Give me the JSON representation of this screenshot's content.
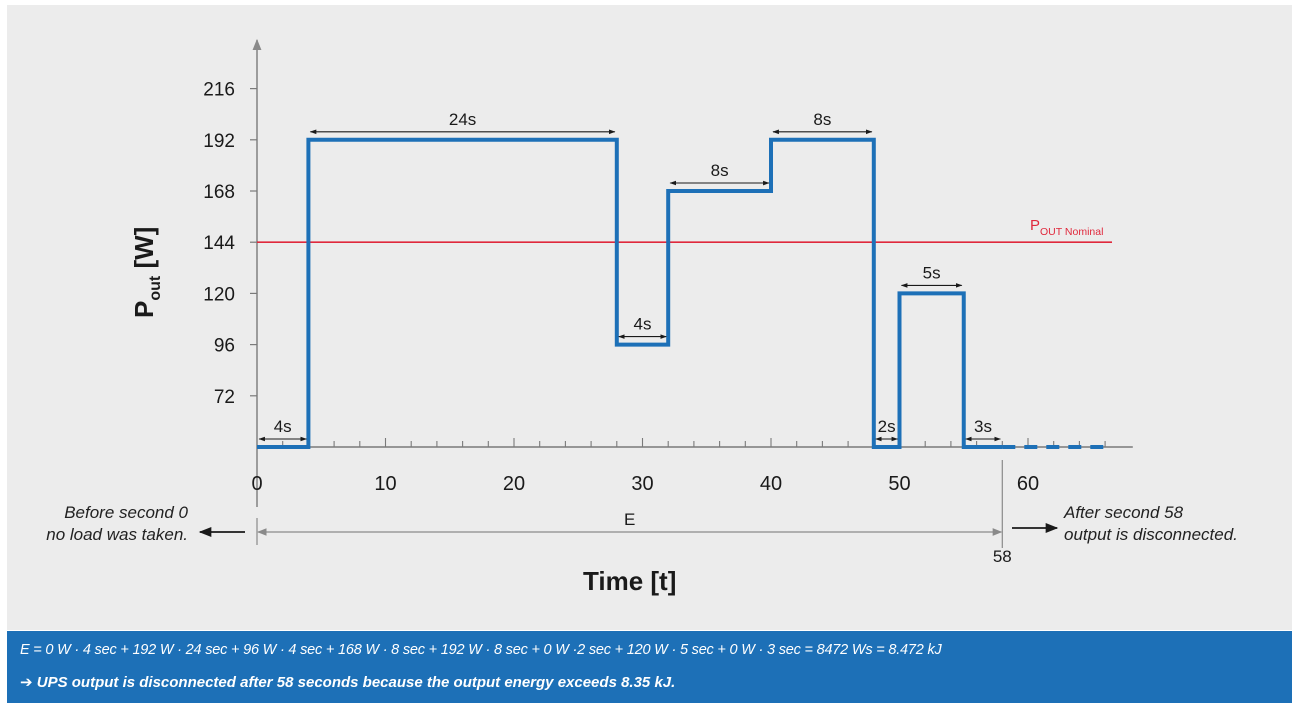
{
  "chart_data": {
    "type": "line",
    "step": true,
    "xlabel": "Time [t]",
    "ylabel_main": "P",
    "ylabel_sub": "out",
    "ylabel_unit": "[W]",
    "xlim": [
      0,
      68
    ],
    "ylim": [
      48,
      228
    ],
    "x_ticks": [
      0,
      10,
      20,
      30,
      40,
      50,
      60
    ],
    "y_ticks": [
      72,
      96,
      120,
      144,
      168,
      192,
      216
    ],
    "series": [
      {
        "color": "#1d70b7",
        "x": [
          0,
          4,
          4,
          28,
          28,
          32,
          32,
          40,
          40,
          48,
          48,
          50,
          50,
          55,
          55,
          58
        ],
        "y": [
          48,
          48,
          192,
          192,
          96,
          96,
          168,
          168,
          192,
          192,
          48,
          48,
          120,
          120,
          48,
          48
        ]
      }
    ],
    "continuation_dashed": {
      "x": [
        58,
        66
      ],
      "y": 48
    },
    "reference_line": {
      "y": 144,
      "label": "P",
      "label_sub": "OUT Nominal",
      "color": "#e0283c"
    },
    "durations": [
      {
        "label": "4s",
        "x0": 0,
        "x1": 4,
        "level": 48
      },
      {
        "label": "24s",
        "x0": 4,
        "x1": 28,
        "level": 192
      },
      {
        "label": "4s",
        "x0": 28,
        "x1": 32,
        "level": 96
      },
      {
        "label": "8s",
        "x0": 32,
        "x1": 40,
        "level": 168
      },
      {
        "label": "8s",
        "x0": 40,
        "x1": 48,
        "level": 192
      },
      {
        "label": "2s",
        "x0": 48,
        "x1": 50,
        "level": 48
      },
      {
        "label": "5s",
        "x0": 50,
        "x1": 55,
        "level": 120
      },
      {
        "label": "3s",
        "x0": 55,
        "x1": 58,
        "level": 48
      }
    ],
    "energy_span": {
      "label": "E",
      "x0": 0,
      "x1": 58,
      "end_label": "58"
    },
    "notes": {
      "before": [
        "Before second 0",
        "no load was taken."
      ],
      "after": [
        "After second 58",
        "output is disconnected."
      ]
    }
  },
  "footer": {
    "formula": "E = 0 W · 4 sec + 192 W · 24 sec + 96 W · 4 sec + 168 W · 8 sec + 192 W · 8 sec + 0 W ·2 sec + 120 W · 5 sec + 0 W · 3 sec = 8472 Ws = 8.472 kJ",
    "arrow": "➔",
    "conclusion": "UPS output is disconnected after 58 seconds because the output energy exceeds 8.35 kJ.",
    "background": "#1d70b7"
  },
  "colors": {
    "plot_background": "#ececec",
    "axis": "#7a7a7a",
    "series": "#1d70b7",
    "reference": "#e0283c"
  }
}
